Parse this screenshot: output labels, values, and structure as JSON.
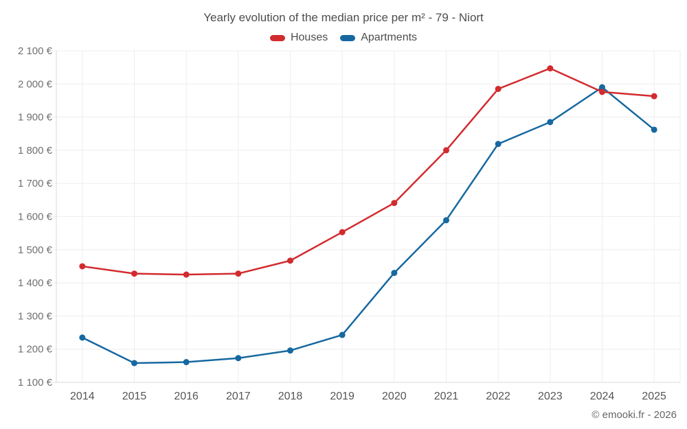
{
  "chart": {
    "title": "Yearly evolution of the median price per m² - 79 - Niort",
    "footer": "© emooki.fr - 2026",
    "legend": [
      {
        "label": "Houses",
        "color": "#d22b2f"
      },
      {
        "label": "Apartments",
        "color": "#1668a0"
      }
    ]
  },
  "chart_data": {
    "type": "line",
    "title": "Yearly evolution of the median price per m² - 79 - Niort",
    "x": [
      "2014",
      "2015",
      "2016",
      "2017",
      "2018",
      "2019",
      "2020",
      "2021",
      "2022",
      "2023",
      "2024",
      "2025"
    ],
    "series": [
      {
        "name": "Houses",
        "color": "#d22b2f",
        "values": [
          1450,
          1428,
          1425,
          1428,
          1467,
          1553,
          1641,
          1800,
          1985,
          2047,
          1976,
          1963
        ]
      },
      {
        "name": "Apartments",
        "color": "#1668a0",
        "values": [
          1235,
          1158,
          1161,
          1173,
          1196,
          1243,
          1430,
          1589,
          1819,
          1885,
          1990,
          1862
        ]
      }
    ],
    "xlabel": "",
    "ylabel": "",
    "ylim": [
      1100,
      2100
    ],
    "ytick_step": 100,
    "ytick_values": [
      1100,
      1200,
      1300,
      1400,
      1500,
      1600,
      1700,
      1800,
      1900,
      2000,
      2100
    ],
    "ytick_labels": [
      "1 100 €",
      "1 200 €",
      "1 300 €",
      "1 400 €",
      "1 500 €",
      "1 600 €",
      "1 700 €",
      "1 800 €",
      "1 900 €",
      "2 000 €",
      "2 100 €"
    ],
    "grid": true,
    "legend_position": "top",
    "marker": "circle",
    "colors": {
      "grid_line": "#ededed",
      "axis_line": "#d9d9d9",
      "ytick_text": "#707070",
      "xtick_text": "#555555"
    }
  }
}
